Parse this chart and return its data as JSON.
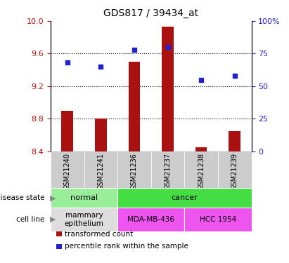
{
  "title": "GDS817 / 39434_at",
  "samples": [
    "GSM21240",
    "GSM21241",
    "GSM21236",
    "GSM21237",
    "GSM21238",
    "GSM21239"
  ],
  "transformed_count": [
    8.9,
    8.8,
    9.5,
    9.93,
    8.45,
    8.65
  ],
  "percentile_rank": [
    68,
    65,
    78,
    80,
    55,
    58
  ],
  "ylim_left": [
    8.4,
    10.0
  ],
  "ylim_right": [
    0,
    100
  ],
  "yticks_left": [
    8.4,
    8.8,
    9.2,
    9.6,
    10.0
  ],
  "yticks_right": [
    0,
    25,
    50,
    75,
    100
  ],
  "bar_color": "#aa1111",
  "dot_color": "#2222cc",
  "bar_width": 0.35,
  "disease_state": [
    {
      "label": "normal",
      "span": [
        0,
        2
      ],
      "color": "#99ee99"
    },
    {
      "label": "cancer",
      "span": [
        2,
        6
      ],
      "color": "#44dd44"
    }
  ],
  "cell_line": [
    {
      "label": "mammary\nepithelium",
      "span": [
        0,
        2
      ],
      "color": "#dddddd"
    },
    {
      "label": "MDA-MB-436",
      "span": [
        2,
        4
      ],
      "color": "#ee55ee"
    },
    {
      "label": "HCC 1954",
      "span": [
        4,
        6
      ],
      "color": "#ee55ee"
    }
  ],
  "background_color": "#ffffff",
  "tick_color_left": "#bb1111",
  "tick_color_right": "#2222cc",
  "xtick_bg": "#cccccc",
  "legend_items": [
    {
      "label": "transformed count",
      "color": "#aa1111"
    },
    {
      "label": "percentile rank within the sample",
      "color": "#2222cc"
    }
  ]
}
